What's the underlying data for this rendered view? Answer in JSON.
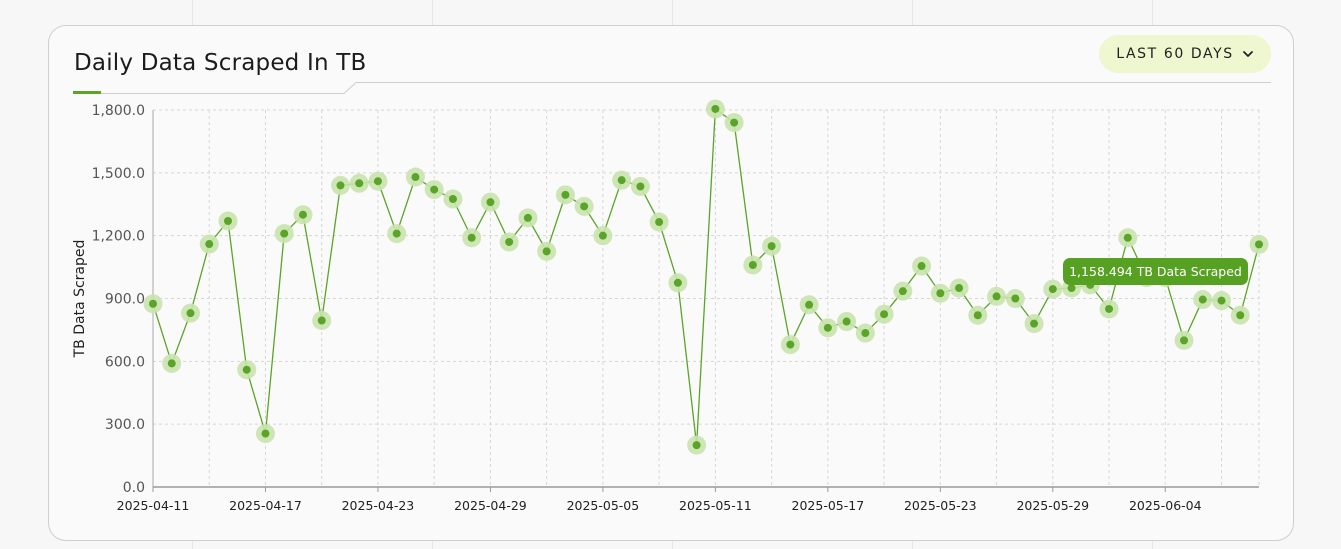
{
  "title": "Daily Data Scraped In TB",
  "range_button": {
    "label": "LAST 60 DAYS",
    "icon": "chevron-down-icon"
  },
  "tooltip": {
    "text": "1,158.494 TB Data Scraped"
  },
  "colors": {
    "accent": "#5aa527",
    "marker_halo": "#c9e3ae",
    "button_bg": "#eef7cf"
  },
  "chart_data": {
    "type": "line",
    "title": "Daily Data Scraped In TB",
    "xlabel": "",
    "ylabel": "TB Data Scraped",
    "ylim": [
      0,
      1800
    ],
    "yticks": [
      "0.0",
      "300.0",
      "600.0",
      "900.0",
      "1,200.0",
      "1,500.0",
      "1,800.0"
    ],
    "xtick_labels": [
      "2025-04-11",
      "2025-04-17",
      "2025-04-23",
      "2025-04-29",
      "2025-05-05",
      "2025-05-11",
      "2025-05-17",
      "2025-05-23",
      "2025-05-29",
      "2025-06-04"
    ],
    "grid": true,
    "series": [
      {
        "x": [
          "2025-04-11",
          "2025-04-12",
          "2025-04-13",
          "2025-04-14",
          "2025-04-15",
          "2025-04-16",
          "2025-04-17",
          "2025-04-18",
          "2025-04-19",
          "2025-04-20",
          "2025-04-21",
          "2025-04-22",
          "2025-04-23",
          "2025-04-24",
          "2025-04-25",
          "2025-04-26",
          "2025-04-27",
          "2025-04-28",
          "2025-04-29",
          "2025-04-30",
          "2025-05-01",
          "2025-05-02",
          "2025-05-03",
          "2025-05-04",
          "2025-05-05",
          "2025-05-06",
          "2025-05-07",
          "2025-05-08",
          "2025-05-09",
          "2025-05-10",
          "2025-05-11",
          "2025-05-12",
          "2025-05-13",
          "2025-05-14",
          "2025-05-15",
          "2025-05-16",
          "2025-05-17",
          "2025-05-18",
          "2025-05-19",
          "2025-05-20",
          "2025-05-21",
          "2025-05-22",
          "2025-05-23",
          "2025-05-24",
          "2025-05-25",
          "2025-05-26",
          "2025-05-27",
          "2025-05-28",
          "2025-05-29",
          "2025-05-30",
          "2025-05-31",
          "2025-06-01",
          "2025-06-02",
          "2025-06-03",
          "2025-06-04",
          "2025-06-05",
          "2025-06-06",
          "2025-06-07",
          "2025-06-08",
          "2025-06-09"
        ],
        "values": [
          875,
          590,
          830,
          1160,
          1270,
          560,
          255,
          1210,
          1300,
          795,
          1440,
          1450,
          1460,
          1210,
          1480,
          1420,
          1375,
          1190,
          1360,
          1170,
          1285,
          1125,
          1395,
          1340,
          1200,
          1465,
          1435,
          1265,
          975,
          200,
          1805,
          1740,
          1060,
          1150,
          680,
          870,
          760,
          790,
          735,
          825,
          935,
          1055,
          925,
          950,
          820,
          910,
          900,
          780,
          945,
          950,
          965,
          850,
          1190,
          1000,
          1000,
          700,
          895,
          890,
          820,
          1158.494
        ]
      }
    ]
  }
}
